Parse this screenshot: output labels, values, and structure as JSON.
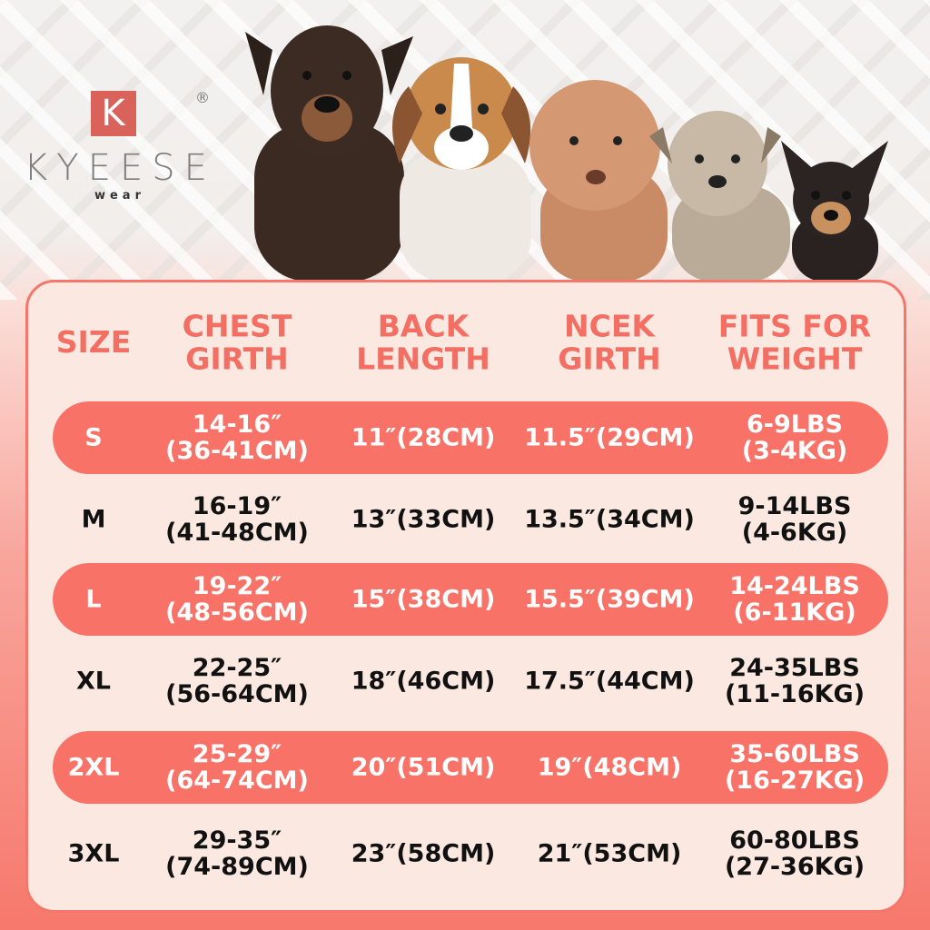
{
  "brand": {
    "letter": "K",
    "name": "KYEESE",
    "sub": "wear",
    "reg": "®"
  },
  "colors": {
    "accent": "#f87268",
    "panel": "#fbe9e1",
    "text": "#111111"
  },
  "images": [
    "doberman-dog",
    "beagle-dog",
    "poodle-dog",
    "schnauzer-dog",
    "chihuahua-dog"
  ],
  "table": {
    "headers": [
      "SIZE",
      "CHEST\nGIRTH",
      "BACK\nLENGTH",
      "NCEK\nGIRTH",
      "FITS FOR\nWEIGHT"
    ],
    "rows": [
      {
        "size": "S",
        "chest": "14-16″\n(36-41CM)",
        "back": "11″(28CM)",
        "neck": "11.5″(29CM)",
        "weight": "6-9LBS\n(3-4KG)"
      },
      {
        "size": "M",
        "chest": "16-19″\n(41-48CM)",
        "back": "13″(33CM)",
        "neck": "13.5″(34CM)",
        "weight": "9-14LBS\n(4-6KG)"
      },
      {
        "size": "L",
        "chest": "19-22″\n(48-56CM)",
        "back": "15″(38CM)",
        "neck": "15.5″(39CM)",
        "weight": "14-24LBS\n(6-11KG)"
      },
      {
        "size": "XL",
        "chest": "22-25″\n(56-64CM)",
        "back": "18″(46CM)",
        "neck": "17.5″(44CM)",
        "weight": "24-35LBS\n(11-16KG)"
      },
      {
        "size": "2XL",
        "chest": "25-29″\n(64-74CM)",
        "back": "20″(51CM)",
        "neck": "19″(48CM)",
        "weight": "35-60LBS\n(16-27KG)"
      },
      {
        "size": "3XL",
        "chest": "29-35″\n(74-89CM)",
        "back": "23″(58CM)",
        "neck": "21″(53CM)",
        "weight": "60-80LBS\n(27-36KG)"
      }
    ]
  }
}
